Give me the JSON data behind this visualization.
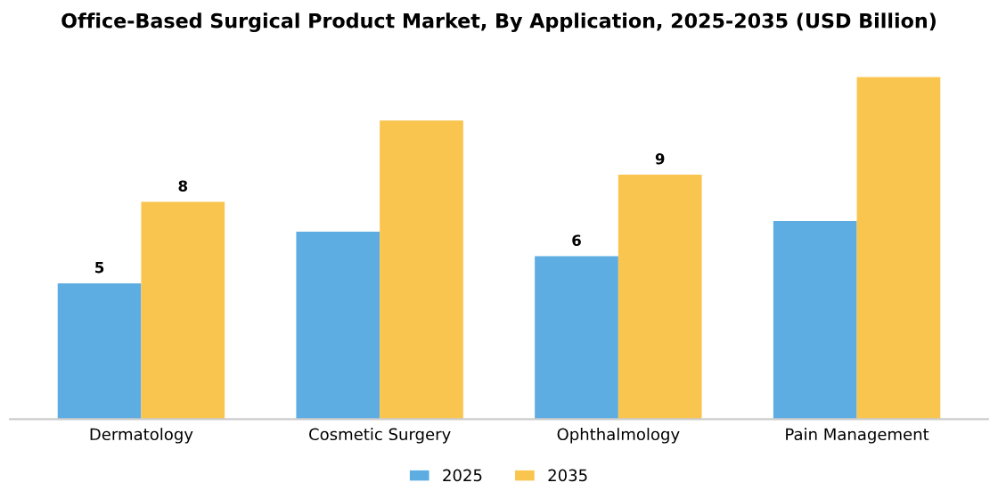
{
  "chart_data": {
    "type": "bar",
    "title": "Office-Based Surgical Product Market, By Application, 2025-2035 (USD Billion)",
    "categories": [
      "Dermatology",
      "Cosmetic Surgery",
      "Ophthalmology",
      "Pain Management"
    ],
    "series": [
      {
        "name": "2025",
        "color": "#5dade2",
        "values": [
          5,
          6.9,
          6,
          7.3
        ],
        "value_labels": [
          "5",
          null,
          "6",
          null
        ]
      },
      {
        "name": "2035",
        "color": "#f9c54e",
        "values": [
          8,
          11,
          9,
          12.6
        ],
        "value_labels": [
          "8",
          null,
          "9",
          null
        ]
      }
    ],
    "legend": "bottom",
    "grid": false
  }
}
